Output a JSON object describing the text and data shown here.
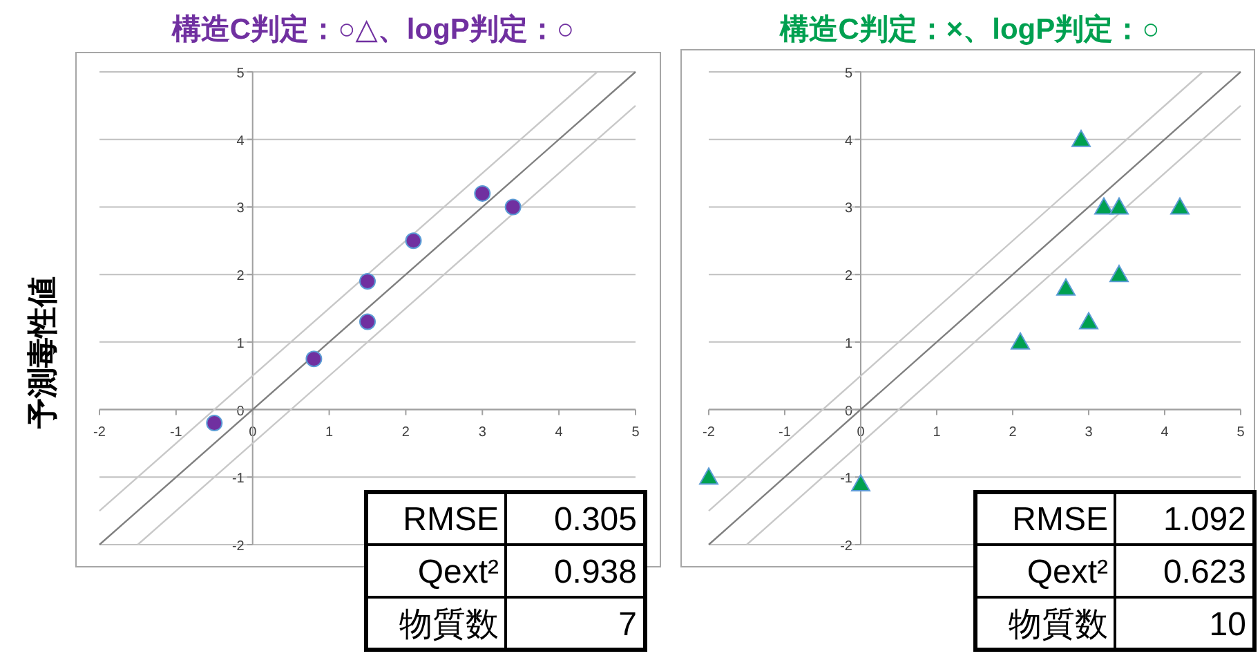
{
  "chart_data": [
    {
      "type": "scatter",
      "title": "構造C判定：○△、logP判定：○",
      "ylabel": "予測毒性値",
      "xlim": [
        -2,
        5
      ],
      "ylim": [
        -2,
        5
      ],
      "xticks": [
        -2,
        -1,
        0,
        1,
        2,
        3,
        4,
        5
      ],
      "yticks": [
        -2,
        -1,
        0,
        1,
        2,
        3,
        4,
        5
      ],
      "grid": "y",
      "series": [
        {
          "type": "line",
          "color": "#c8c8c8",
          "x": [
            -2,
            4.5
          ],
          "values": [
            -1.5,
            5
          ]
        },
        {
          "type": "line",
          "color": "#c8c8c8",
          "x": [
            -1.5,
            5
          ],
          "values": [
            -2,
            4.5
          ]
        },
        {
          "type": "line",
          "color": "#7f7f7f",
          "x": [
            -2,
            5
          ],
          "values": [
            -2,
            5
          ]
        },
        {
          "color": "#7030a0",
          "marker": "circle",
          "x": [
            -0.5,
            0.8,
            1.5,
            1.5,
            2.1,
            3.0,
            3.4
          ],
          "values": [
            -0.2,
            0.75,
            1.9,
            1.3,
            2.5,
            3.2,
            3.0
          ]
        }
      ],
      "annotations": [
        "RMSE",
        "0.305",
        "Qext²",
        "0.938",
        "物質数",
        "7"
      ]
    },
    {
      "type": "scatter",
      "title": "構造C判定：×、logP判定：○",
      "xlim": [
        -2,
        5
      ],
      "ylim": [
        -2,
        5
      ],
      "xticks": [
        -2,
        -1,
        0,
        1,
        2,
        3,
        4,
        5
      ],
      "yticks": [
        -2,
        -1,
        0,
        1,
        2,
        3,
        4,
        5
      ],
      "grid": "y",
      "series": [
        {
          "type": "line",
          "color": "#c8c8c8",
          "x": [
            -2,
            4.5
          ],
          "values": [
            -1.5,
            5
          ]
        },
        {
          "type": "line",
          "color": "#c8c8c8",
          "x": [
            -1.5,
            5
          ],
          "values": [
            -2,
            4.5
          ]
        },
        {
          "type": "line",
          "color": "#7f7f7f",
          "x": [
            -2,
            5
          ],
          "values": [
            -2,
            5
          ]
        },
        {
          "color": "#00a050",
          "marker": "triangle",
          "x": [
            -2,
            0,
            2.1,
            2.7,
            3.0,
            2.9,
            3.2,
            3.4,
            3.4,
            4.2
          ],
          "values": [
            -1,
            -1.1,
            1,
            1.8,
            1.3,
            4,
            3,
            3,
            2,
            3
          ]
        }
      ],
      "annotations": [
        "RMSE",
        "1.092",
        "Qext²",
        "0.623",
        "物質数",
        "10"
      ]
    }
  ]
}
